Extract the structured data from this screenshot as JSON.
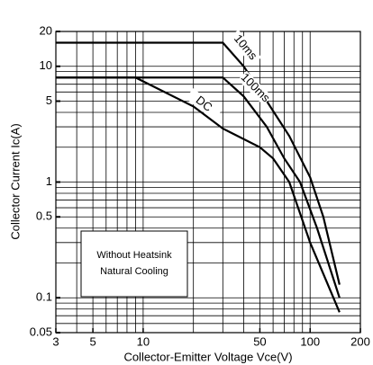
{
  "chart_data": {
    "type": "line",
    "xlabel": "Collector-Emitter Voltage Vce(V)",
    "ylabel": "Collector Current Ic(A)",
    "xscale": "log",
    "yscale": "log",
    "xlim": [
      3,
      200
    ],
    "ylim": [
      0.05,
      20
    ],
    "xticks": [
      3,
      5,
      10,
      50,
      100,
      200
    ],
    "yticks": [
      0.05,
      0.1,
      0.5,
      1,
      5,
      10,
      20
    ],
    "xgrid": [
      3,
      4,
      5,
      6,
      7,
      8,
      9,
      10,
      20,
      30,
      40,
      50,
      60,
      70,
      80,
      90,
      100,
      200
    ],
    "ygrid": [
      0.05,
      0.06,
      0.07,
      0.08,
      0.09,
      0.1,
      0.2,
      0.3,
      0.4,
      0.5,
      0.6,
      0.7,
      0.8,
      0.9,
      1,
      2,
      3,
      4,
      5,
      6,
      7,
      8,
      9,
      10,
      20
    ],
    "color": "#000000",
    "series": [
      {
        "name": "10ms",
        "x": [
          3,
          30,
          40,
          55,
          75,
          100,
          120,
          150
        ],
        "values": [
          16,
          16,
          10,
          5,
          2.5,
          1.1,
          0.5,
          0.13
        ]
      },
      {
        "name": "100ms",
        "x": [
          3,
          30,
          40,
          55,
          70,
          87,
          110,
          150
        ],
        "values": [
          8,
          8,
          5.5,
          3,
          1.6,
          1,
          0.4,
          0.1
        ]
      },
      {
        "name": "DC",
        "x": [
          3,
          9,
          20,
          30,
          50,
          60,
          75,
          100,
          150
        ],
        "values": [
          8,
          8,
          4.5,
          2.9,
          2,
          1.6,
          1,
          0.3,
          0.075
        ]
      }
    ],
    "annotation": [
      "Without Heatsink",
      "Natural Cooling"
    ]
  }
}
